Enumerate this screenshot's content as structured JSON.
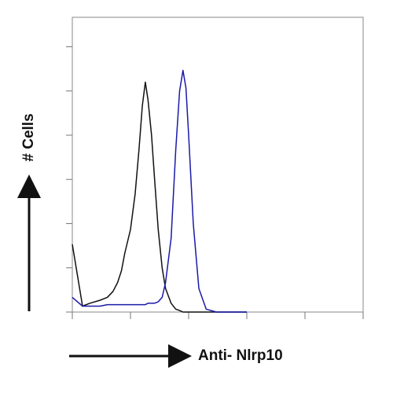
{
  "chart_data": {
    "type": "line",
    "x_label": "Anti- Nlrp10",
    "y_label": "# Cells",
    "x": [
      1,
      1.5,
      2,
      3,
      4,
      5,
      6,
      7,
      8,
      10,
      12,
      14,
      16,
      18,
      20,
      23,
      26,
      30,
      35,
      40,
      50,
      60,
      70,
      80,
      90,
      100,
      120,
      150,
      200,
      300,
      1000
    ],
    "series": [
      {
        "color": "#111111",
        "values": [
          23,
          2,
          3,
          4,
          5,
          7,
          10,
          14,
          20,
          28,
          40,
          55,
          70,
          78,
          72,
          60,
          45,
          28,
          15,
          8,
          3,
          1,
          0.5,
          0,
          0,
          0,
          0,
          0,
          0,
          0,
          0
        ]
      },
      {
        "color": "#1a1aa8",
        "values": [
          5,
          2,
          2,
          2,
          2.5,
          2.5,
          2.5,
          2.5,
          2.5,
          2.5,
          2.5,
          2.5,
          2.5,
          2.5,
          3,
          3,
          3,
          3.5,
          5,
          10,
          25,
          55,
          75,
          82,
          76,
          60,
          30,
          8,
          1,
          0,
          0
        ]
      }
    ],
    "xlim": [
      1,
      100000
    ],
    "xticks": [
      1,
      10,
      100,
      1000,
      10000,
      100000
    ],
    "xscale": "log",
    "ylim": [
      0,
      100
    ],
    "yticks": [
      0,
      15,
      30,
      45,
      60,
      75,
      90
    ]
  }
}
